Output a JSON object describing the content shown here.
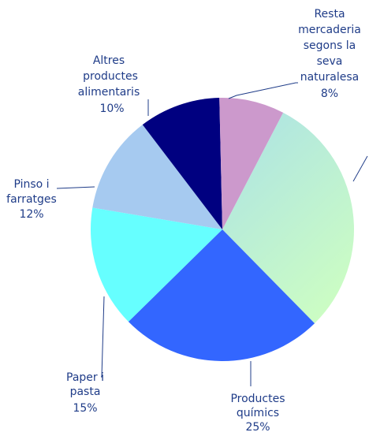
{
  "chart_data": {
    "type": "pie",
    "start_angle_deg": 0,
    "slices": [
      {
        "label": "",
        "value": 30,
        "percent_text": "",
        "color": "#b7eed6",
        "gradient_to": "#cdfec2"
      },
      {
        "label": "Productes químics",
        "value": 25,
        "percent_text": "25%",
        "color": "#3366ff"
      },
      {
        "label": "Paper i pasta",
        "value": 15,
        "percent_text": "15%",
        "color": "#66ffff"
      },
      {
        "label": "Pinso i farratges",
        "value": 12,
        "percent_text": "12%",
        "color": "#a6caf0"
      },
      {
        "label": "Altres productes alimentaris",
        "value": 10,
        "percent_text": "10%",
        "color": "#000080"
      },
      {
        "label": "Resta mercaderia segons la seva naturalesa",
        "value": 8,
        "percent_text": "8%",
        "color": "#cc99cc"
      }
    ],
    "label_color": "#1f3c88"
  }
}
